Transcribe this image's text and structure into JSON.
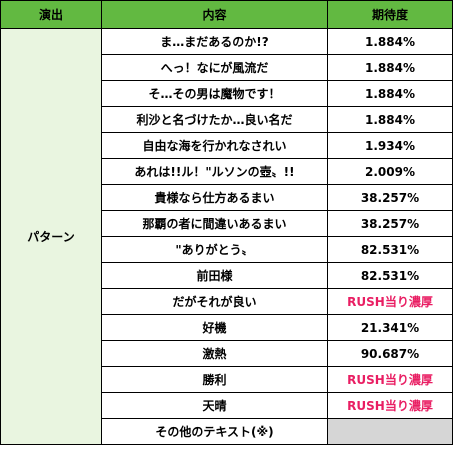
{
  "colors": {
    "header_bg": "#62b941",
    "group_bg": "#e9f5e0",
    "emphasis_text": "#e91e63",
    "empty_cell_bg": "#d6d6d6"
  },
  "table": {
    "headers": [
      "演出",
      "内容",
      "期待度"
    ],
    "group_label": "パターン",
    "rows": [
      {
        "content": "ま…まだあるのか!?",
        "expectation": "1.884%"
      },
      {
        "content": "へっ！なにが風流だ",
        "expectation": "1.884%"
      },
      {
        "content": "そ…その男は魔物です！",
        "expectation": "1.884%"
      },
      {
        "content": "利沙と名づけたか…良い名だ",
        "expectation": "1.884%"
      },
      {
        "content": "自由な海を行かれなされい",
        "expectation": "1.934%"
      },
      {
        "content": "あれは!!ル！\"ルソンの壺〟!!",
        "expectation": "2.009%"
      },
      {
        "content": "貴様なら仕方あるまい",
        "expectation": "38.257%"
      },
      {
        "content": "那覇の者に間違いあるまい",
        "expectation": "38.257%"
      },
      {
        "content": "\"ありがとう〟",
        "expectation": "82.531%"
      },
      {
        "content": "前田様",
        "expectation": "82.531%"
      },
      {
        "content": "だがそれが良い",
        "expectation": "RUSH当り濃厚"
      },
      {
        "content": "好機",
        "expectation": "21.341%"
      },
      {
        "content": "激熱",
        "expectation": "90.687%"
      },
      {
        "content": "勝利",
        "expectation": "RUSH当り濃厚"
      },
      {
        "content": "天晴",
        "expectation": "RUSH当り濃厚"
      },
      {
        "content": "その他のテキスト(※)",
        "expectation": ""
      }
    ]
  }
}
